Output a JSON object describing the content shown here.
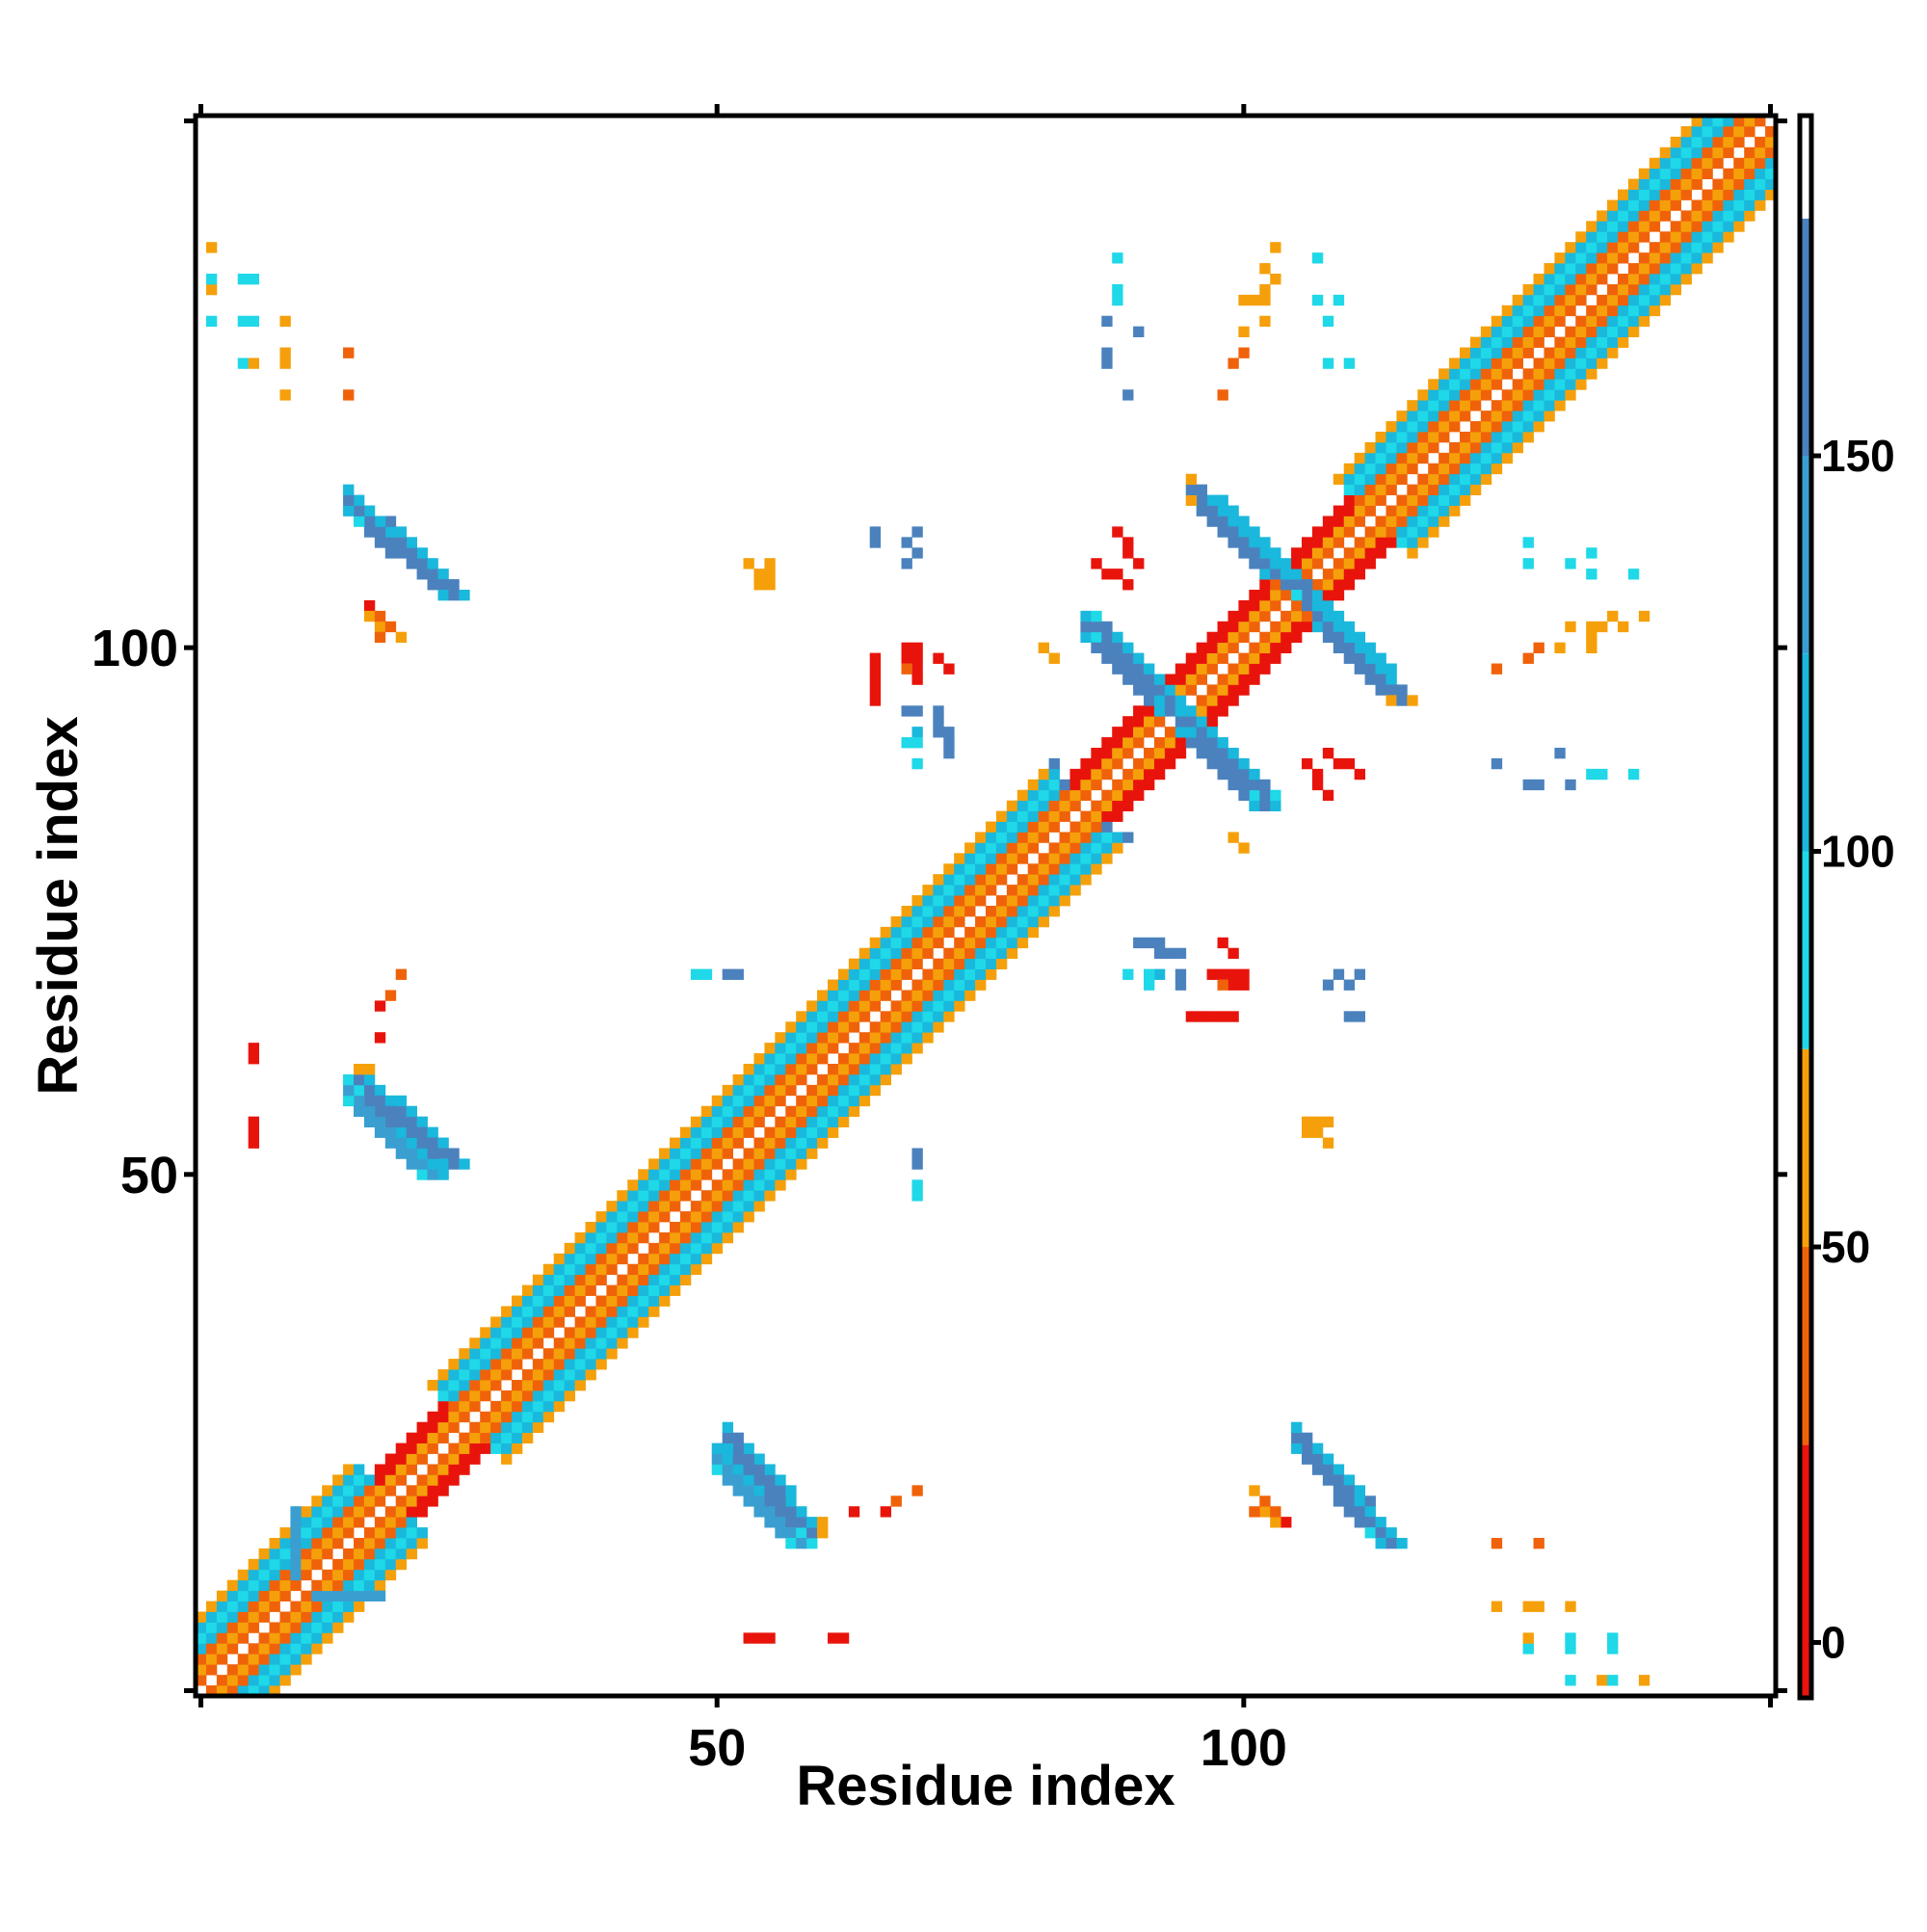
{
  "chart_data": {
    "type": "heatmap",
    "title": "",
    "xlabel": "Residue index",
    "ylabel": "Residue index",
    "n_residues": 150,
    "xlim": [
      1,
      150
    ],
    "ylim": [
      1,
      150
    ],
    "x_ticks": [
      50,
      100
    ],
    "y_ticks": [
      50,
      100
    ],
    "colorbar": {
      "ticks": [
        0,
        50,
        100,
        150
      ],
      "range": [
        -7,
        193
      ],
      "segments": [
        {
          "from": -7,
          "to": 25,
          "color": "#e8140c"
        },
        {
          "from": 25,
          "to": 50,
          "color": "#f0620a"
        },
        {
          "from": 50,
          "to": 75,
          "color": "#f5a00a"
        },
        {
          "from": 75,
          "to": 100,
          "color": "#1fd8e8"
        },
        {
          "from": 100,
          "to": 125,
          "color": "#1ab8dc"
        },
        {
          "from": 125,
          "to": 150,
          "color": "#3a9fd0"
        },
        {
          "from": 150,
          "to": 180,
          "color": "#4b82bd"
        },
        {
          "from": 180,
          "to": 193,
          "color": "#ffffff"
        }
      ]
    },
    "diagonal": {
      "residues": [
        1,
        150
      ],
      "bands": [
        {
          "offset": 1,
          "value": 45
        },
        {
          "offset": 2,
          "value": 60
        },
        {
          "offset": 3,
          "value": 40
        },
        {
          "offset": 4,
          "value": 105
        },
        {
          "offset": 5,
          "value": 90
        },
        {
          "offset": 6,
          "value": 115
        },
        {
          "offset": 7,
          "value": 55
        }
      ],
      "helix_segments": [
        [
          20,
          26
        ],
        [
          86,
          104
        ],
        [
          107,
          112
        ]
      ]
    },
    "stripes": [
      {
        "x0": 50,
        "x1": 57,
        "y0": 22,
        "y1": 15,
        "value": 145,
        "width": 3,
        "start": 95,
        "end": 95
      },
      {
        "x0": 107,
        "x1": 113,
        "y0": 22,
        "y1": 15,
        "value": 155,
        "width": 3,
        "start": 95,
        "end": 100
      },
      {
        "x0": 16,
        "x1": 24,
        "y0": 112,
        "y1": 105,
        "value": 150,
        "width": 3,
        "start": 95,
        "end": 110
      },
      {
        "x0": 16,
        "x1": 24,
        "y0": 58,
        "y1": 51,
        "value": 150,
        "width": 3,
        "start": 95,
        "end": 110
      },
      {
        "x0": 85,
        "x1": 92,
        "y0": 101,
        "y1": 94,
        "value": 150,
        "width": 3,
        "start": 110,
        "end": 100
      },
      {
        "x0": 98,
        "x1": 105,
        "y0": 112,
        "y1": 105,
        "value": 150,
        "width": 3,
        "start": 100,
        "end": 95
      },
      {
        "x0": 107,
        "x1": 114,
        "y0": 102,
        "y1": 95,
        "value": 150,
        "width": 3,
        "start": 100,
        "end": 60
      },
      {
        "x0": 95,
        "x1": 101,
        "y0": 92,
        "y1": 86,
        "value": 150,
        "width": 3,
        "start": 110,
        "end": 95
      },
      {
        "x0": 10,
        "x1": 10,
        "y0": 17,
        "y1": 12,
        "value": 145,
        "width": 1,
        "start": 145,
        "end": 145
      },
      {
        "x0": 14,
        "x1": 18,
        "y0": 10,
        "y1": 10,
        "value": 145,
        "width": 1,
        "start": 145,
        "end": 145
      },
      {
        "x0": 17,
        "x1": 18,
        "y0": 104,
        "y1": 101,
        "value": 55,
        "width": 1,
        "start": 55,
        "end": 30
      },
      {
        "x0": 16,
        "x1": 17,
        "y0": 60,
        "y1": 60,
        "value": 60,
        "width": 1,
        "start": 60,
        "end": 60
      },
      {
        "x0": 101,
        "x1": 104,
        "y0": 20,
        "y1": 17,
        "value": 40,
        "width": 1,
        "start": 55,
        "end": 20
      },
      {
        "x0": 86,
        "x1": 89,
        "y0": 108,
        "y1": 106,
        "value": 10,
        "width": 1,
        "start": 10,
        "end": 10
      },
      {
        "x0": 108,
        "x1": 111,
        "y0": 90,
        "y1": 88,
        "value": 10,
        "width": 1,
        "start": 10,
        "end": 10
      }
    ],
    "points": [
      {
        "x": 2,
        "y": 134,
        "v": 60
      },
      {
        "x": 2,
        "y": 131,
        "v": 90
      },
      {
        "x": 5,
        "y": 131,
        "v": 60
      },
      {
        "x": 6,
        "y": 131,
        "v": 95
      },
      {
        "x": 5,
        "y": 127,
        "v": 95
      },
      {
        "x": 6,
        "y": 127,
        "v": 60
      },
      {
        "x": 9,
        "y": 127,
        "v": 60
      },
      {
        "x": 9,
        "y": 124,
        "v": 60
      },
      {
        "x": 15,
        "y": 124,
        "v": 30
      },
      {
        "x": 20,
        "y": 69,
        "v": 30
      },
      {
        "x": 18,
        "y": 66,
        "v": 10
      },
      {
        "x": 6,
        "y": 62,
        "v": 10
      },
      {
        "x": 6,
        "y": 61,
        "v": 10
      },
      {
        "x": 53,
        "y": 108,
        "v": 60
      },
      {
        "x": 54,
        "y": 107,
        "v": 60
      },
      {
        "x": 54,
        "y": 106,
        "v": 60
      },
      {
        "x": 65,
        "y": 110,
        "v": 150
      },
      {
        "x": 68,
        "y": 110,
        "v": 150
      },
      {
        "x": 68,
        "y": 108,
        "v": 150
      },
      {
        "x": 65,
        "y": 99,
        "v": 10
      },
      {
        "x": 65,
        "y": 98,
        "v": 10
      },
      {
        "x": 68,
        "y": 100,
        "v": 10
      },
      {
        "x": 68,
        "y": 99,
        "v": 10
      },
      {
        "x": 69,
        "y": 99,
        "v": 10
      },
      {
        "x": 69,
        "y": 98,
        "v": 10
      },
      {
        "x": 71,
        "y": 99,
        "v": 10
      },
      {
        "x": 68,
        "y": 94,
        "v": 150
      },
      {
        "x": 69,
        "y": 94,
        "v": 150
      },
      {
        "x": 71,
        "y": 94,
        "v": 150
      },
      {
        "x": 71,
        "y": 93,
        "v": 150
      },
      {
        "x": 71,
        "y": 92,
        "v": 150
      },
      {
        "x": 69,
        "y": 92,
        "v": 100
      },
      {
        "x": 81,
        "y": 100,
        "v": 60
      },
      {
        "x": 49,
        "y": 69,
        "v": 95
      },
      {
        "x": 52,
        "y": 69,
        "v": 150
      },
      {
        "x": 69,
        "y": 51,
        "v": 150
      },
      {
        "x": 69,
        "y": 48,
        "v": 95
      },
      {
        "x": 87,
        "y": 131,
        "v": 150
      },
      {
        "x": 87,
        "y": 128,
        "v": 150
      },
      {
        "x": 87,
        "y": 127,
        "v": 150
      },
      {
        "x": 89,
        "y": 124,
        "v": 150
      },
      {
        "x": 102,
        "y": 134,
        "v": 60
      },
      {
        "x": 102,
        "y": 131,
        "v": 60
      },
      {
        "x": 100,
        "y": 130,
        "v": 60
      },
      {
        "x": 100,
        "y": 128,
        "v": 40
      },
      {
        "x": 99,
        "y": 127,
        "v": 40
      },
      {
        "x": 98,
        "y": 124,
        "v": 40
      },
      {
        "x": 108,
        "y": 131,
        "v": 95
      },
      {
        "x": 108,
        "y": 127,
        "v": 95
      },
      {
        "x": 110,
        "y": 127,
        "v": 95
      },
      {
        "x": 87,
        "y": 83,
        "v": 150
      },
      {
        "x": 89,
        "y": 82,
        "v": 150
      },
      {
        "x": 90,
        "y": 72,
        "v": 150
      },
      {
        "x": 91,
        "y": 72,
        "v": 150
      },
      {
        "x": 92,
        "y": 72,
        "v": 150
      },
      {
        "x": 89,
        "y": 69,
        "v": 95
      },
      {
        "x": 91,
        "y": 69,
        "v": 95
      },
      {
        "x": 91,
        "y": 68,
        "v": 95
      },
      {
        "x": 98,
        "y": 72,
        "v": 10
      },
      {
        "x": 97,
        "y": 69,
        "v": 10
      },
      {
        "x": 98,
        "y": 69,
        "v": 10
      },
      {
        "x": 100,
        "y": 69,
        "v": 10
      },
      {
        "x": 98,
        "y": 68,
        "v": 30
      },
      {
        "x": 95,
        "y": 65,
        "v": 10
      },
      {
        "x": 96,
        "y": 65,
        "v": 10
      },
      {
        "x": 97,
        "y": 65,
        "v": 10
      },
      {
        "x": 109,
        "y": 69,
        "v": 150
      },
      {
        "x": 111,
        "y": 69,
        "v": 150
      },
      {
        "x": 111,
        "y": 65,
        "v": 150
      },
      {
        "x": 99,
        "y": 82,
        "v": 60
      },
      {
        "x": 106,
        "y": 55,
        "v": 60
      },
      {
        "x": 107,
        "y": 55,
        "v": 60
      },
      {
        "x": 108,
        "y": 55,
        "v": 60
      },
      {
        "x": 107,
        "y": 54,
        "v": 60
      },
      {
        "x": 133,
        "y": 109,
        "v": 95
      },
      {
        "x": 133,
        "y": 107,
        "v": 95
      },
      {
        "x": 137,
        "y": 107,
        "v": 95
      },
      {
        "x": 138,
        "y": 103,
        "v": 60
      },
      {
        "x": 135,
        "y": 103,
        "v": 60
      },
      {
        "x": 136,
        "y": 102,
        "v": 60
      },
      {
        "x": 133,
        "y": 102,
        "v": 60
      },
      {
        "x": 133,
        "y": 101,
        "v": 60
      },
      {
        "x": 133,
        "y": 100,
        "v": 60
      },
      {
        "x": 130,
        "y": 100,
        "v": 60
      },
      {
        "x": 130,
        "y": 90,
        "v": 150
      },
      {
        "x": 133,
        "y": 88,
        "v": 95
      },
      {
        "x": 134,
        "y": 88,
        "v": 95
      },
      {
        "x": 137,
        "y": 88,
        "v": 95
      },
      {
        "x": 53,
        "y": 6,
        "v": 10
      },
      {
        "x": 54,
        "y": 6,
        "v": 10
      },
      {
        "x": 55,
        "y": 6,
        "v": 10
      },
      {
        "x": 63,
        "y": 18,
        "v": 10
      },
      {
        "x": 67,
        "y": 19,
        "v": 30
      },
      {
        "x": 128,
        "y": 15,
        "v": 40
      },
      {
        "x": 128,
        "y": 9,
        "v": 60
      },
      {
        "x": 131,
        "y": 9,
        "v": 60
      },
      {
        "x": 131,
        "y": 6,
        "v": 95
      },
      {
        "x": 131,
        "y": 5,
        "v": 95
      },
      {
        "x": 135,
        "y": 6,
        "v": 95
      },
      {
        "x": 135,
        "y": 5,
        "v": 95
      },
      {
        "x": 135,
        "y": 2,
        "v": 95
      },
      {
        "x": 138,
        "y": 2,
        "v": 60
      }
    ]
  }
}
